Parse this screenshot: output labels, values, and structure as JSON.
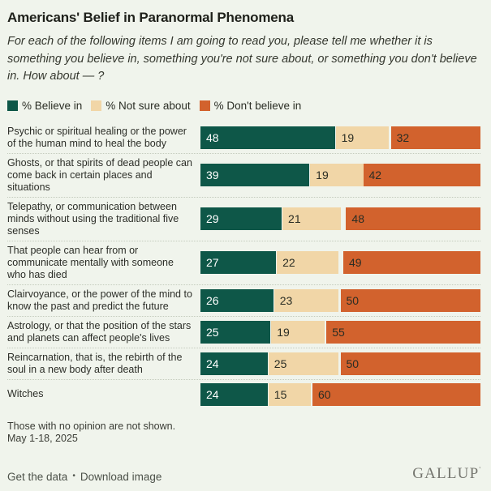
{
  "title": "Americans' Belief in Paranormal Phenomena",
  "subtitle": "For each of the following items I am going to read you, please tell me whether it is something you believe in, something you're not sure about, or something you don't believe in. How about — ?",
  "colors": {
    "background": "#f0f4ec",
    "believe": "#0e5748",
    "not_sure": "#f1d6a7",
    "dont_believe": "#d2622d",
    "separator_dotted": "#c4cbbd"
  },
  "chart_data": {
    "type": "bar",
    "orientation": "horizontal",
    "stacked": true,
    "xlim": [
      0,
      100
    ],
    "grid": false,
    "legend_position": "top",
    "categories": [
      "Psychic or spiritual healing or the power of the human mind to heal the body",
      "Ghosts, or that spirits of dead people can come back in certain places and situations",
      "Telepathy, or communication between minds without using the traditional five senses",
      "That people can hear from or communicate mentally with someone who has died",
      "Clairvoyance, or the power of the mind to know the past and predict the future",
      "Astrology, or that the position of the stars and planets can affect people's lives",
      "Reincarnation, that is, the rebirth of the soul in a new body after death",
      "Witches"
    ],
    "series": [
      {
        "key": "believe",
        "name": "% Believe in",
        "color": "#0e5748",
        "value_color": "#ffffff",
        "values": [
          48,
          39,
          29,
          27,
          26,
          25,
          24,
          24
        ]
      },
      {
        "key": "not-sure",
        "name": "% Not sure about",
        "color": "#f1d6a7",
        "value_color": "#2a2d24",
        "values": [
          19,
          19,
          21,
          22,
          23,
          19,
          25,
          15
        ]
      },
      {
        "key": "dont-believe",
        "name": "% Don't believe in",
        "color": "#d2622d",
        "value_color": "#2a2d24",
        "values": [
          32,
          42,
          48,
          49,
          50,
          55,
          50,
          60
        ]
      }
    ],
    "notes": "Don't-believe segment is right-aligned to 100%; remainder (no opinion) appears as a gap."
  },
  "footnotes": [
    "Those with no opinion are not shown.",
    "May 1-18, 2025"
  ],
  "footer": {
    "get_data_label": "Get the data",
    "separator": "•",
    "download_label": "Download image",
    "brand": "GALLUP",
    "brand_mark": "'"
  }
}
